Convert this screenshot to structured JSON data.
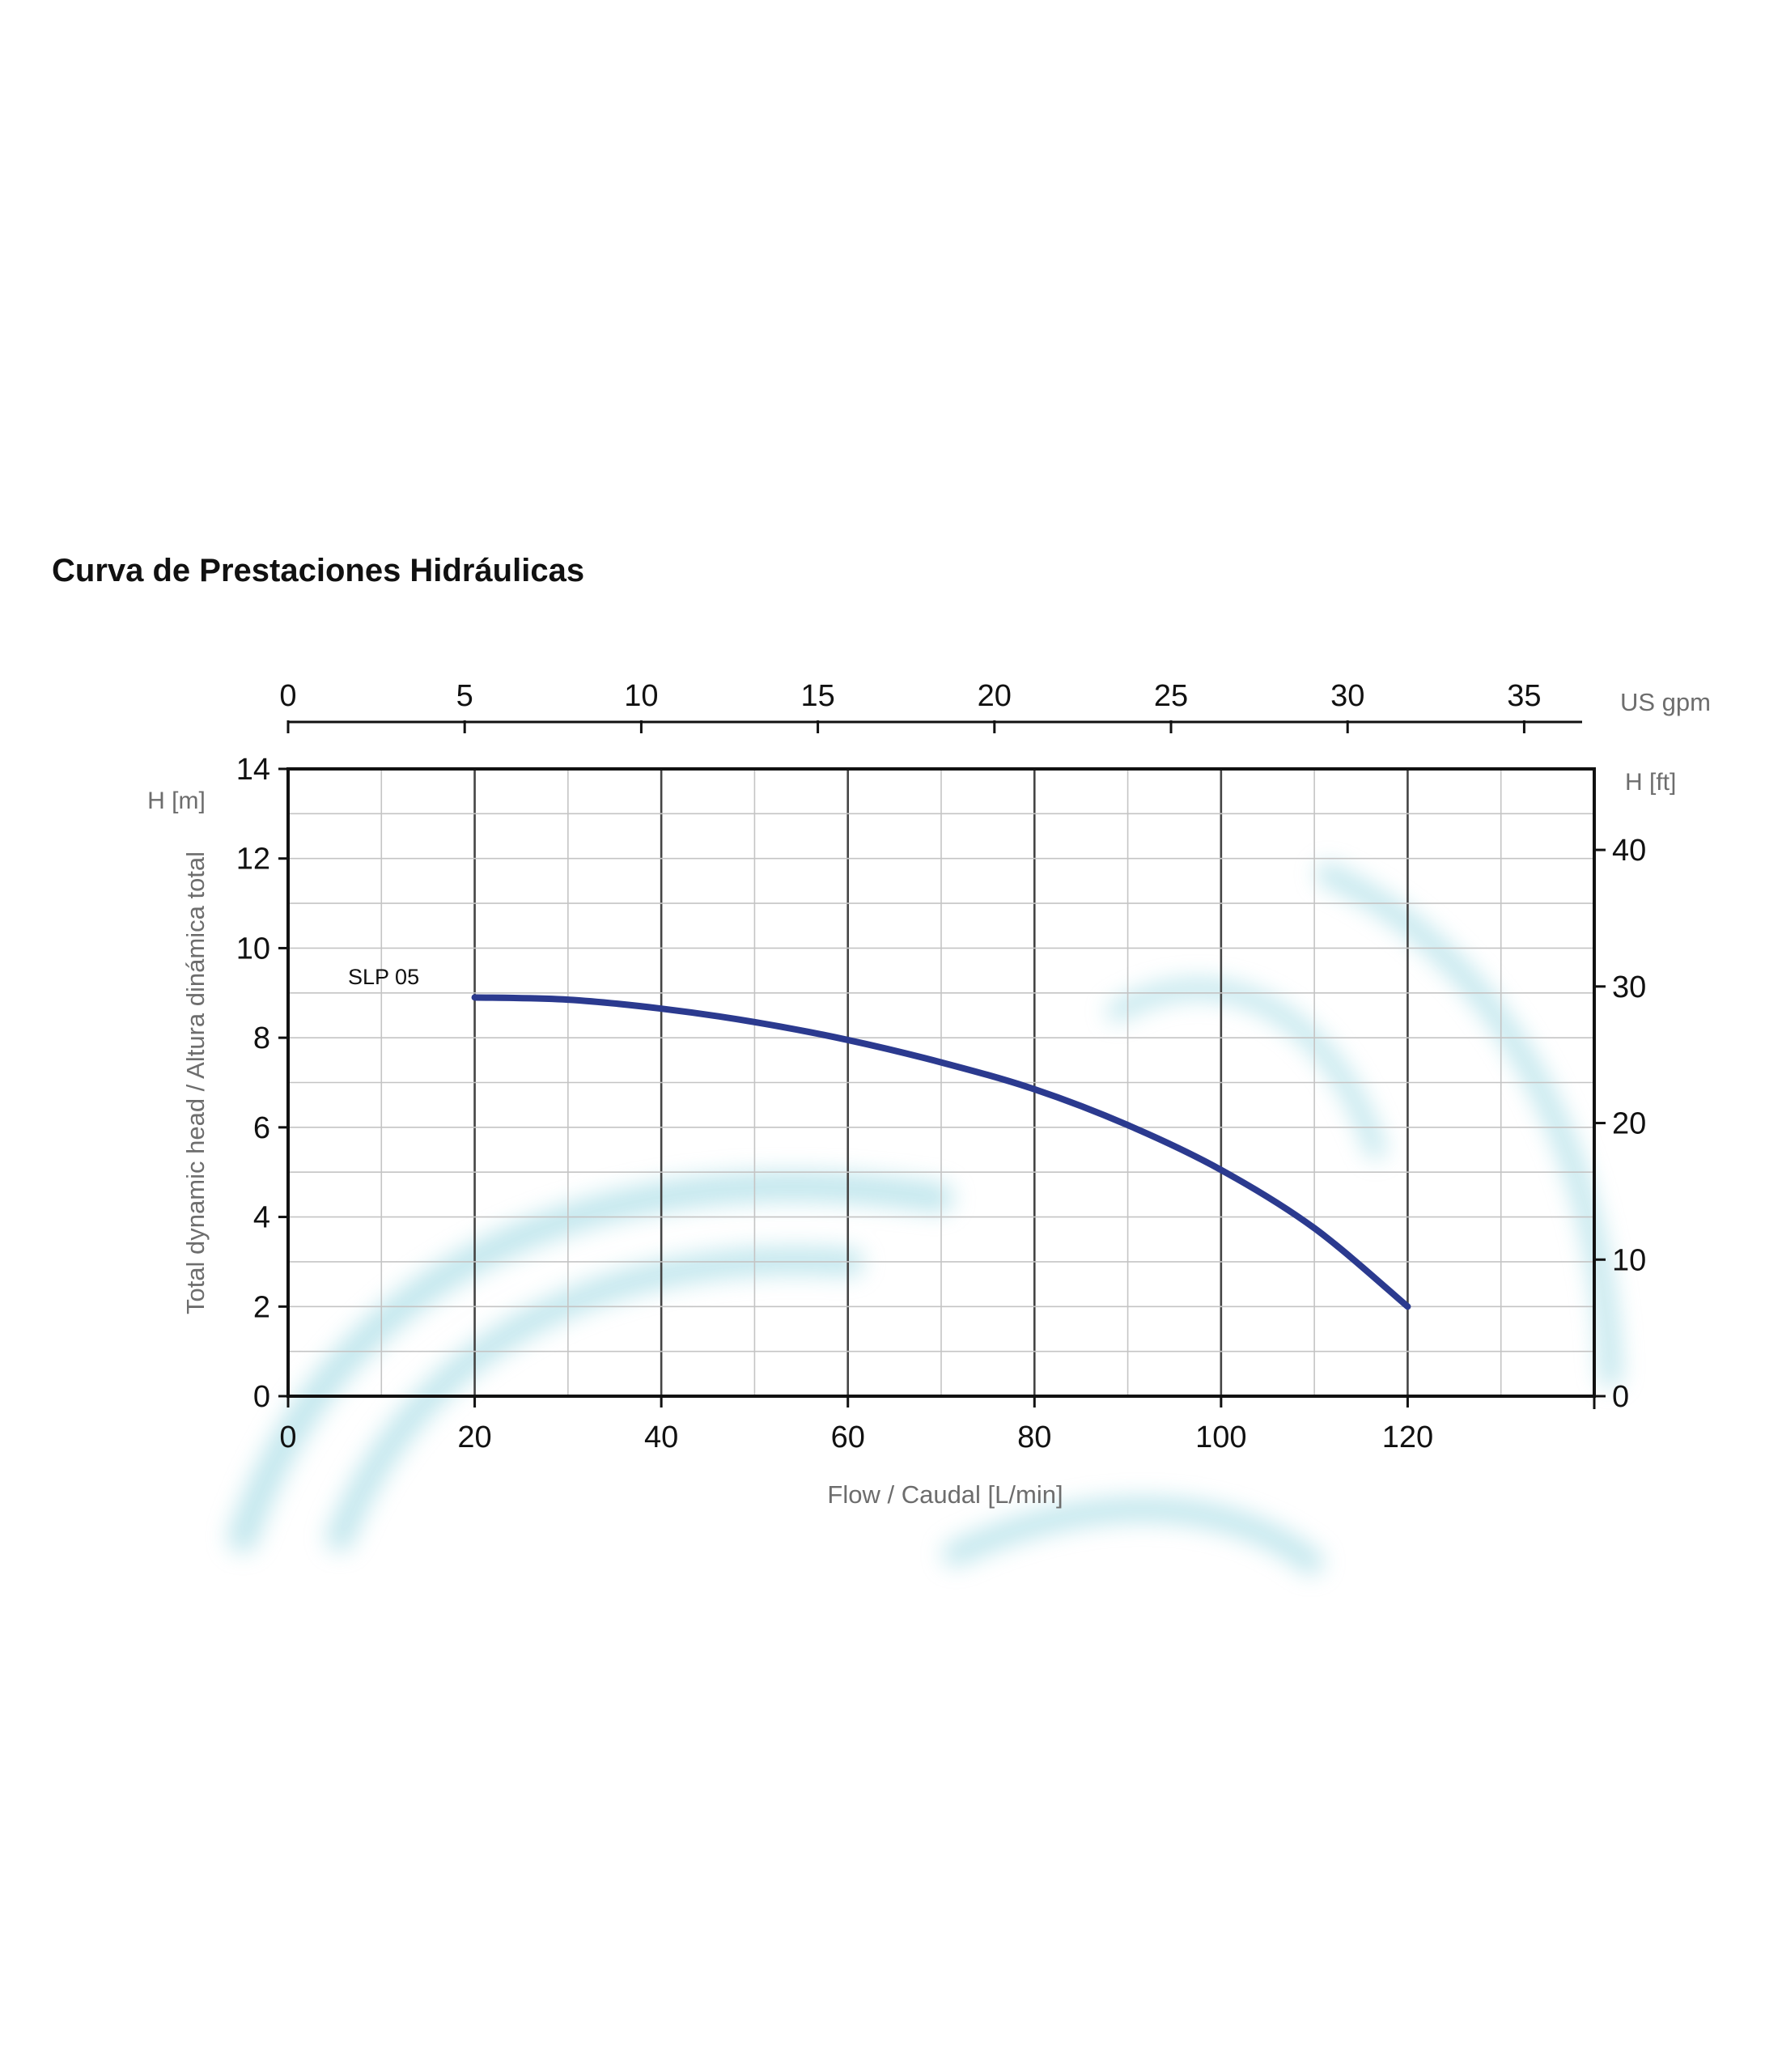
{
  "page": {
    "heading": "Curva de Prestaciones Hidráulicas"
  },
  "colors": {
    "curve": "#2b3a8f",
    "frame": "#111111",
    "grid_major": "#444444",
    "grid_minor": "#c4c4c4",
    "label_gray": "#6d6d6d",
    "watermark": "#8fd3df"
  },
  "chart_data": {
    "type": "line",
    "title": "",
    "xlabel": "Flow / Caudal [L/min]",
    "ylabel": "Total dynamic head / Altura dinámica total",
    "y_unit_label": "H [m]",
    "xlim": [
      0,
      140
    ],
    "ylim": [
      0,
      14
    ],
    "x_ticks": [
      0,
      20,
      40,
      60,
      80,
      100,
      120
    ],
    "y_ticks": [
      0,
      2,
      4,
      6,
      8,
      10,
      12,
      14
    ],
    "x_minor_step": 10,
    "y_minor_step": 1,
    "secondary_x": {
      "label": "US gpm",
      "ticks": [
        0,
        5,
        10,
        15,
        20,
        25,
        30,
        35
      ],
      "factor_from_lmin": 0.264172
    },
    "secondary_y": {
      "label": "H [ft]",
      "ticks": [
        0,
        10,
        20,
        30,
        40
      ],
      "factor_from_m": 3.28084
    },
    "grid": true,
    "series": [
      {
        "name": "SLP 05",
        "x": [
          20,
          30,
          40,
          50,
          60,
          70,
          80,
          90,
          100,
          110,
          120
        ],
        "y": [
          8.9,
          8.85,
          8.65,
          8.35,
          7.95,
          7.45,
          6.85,
          6.05,
          5.05,
          3.75,
          2.0
        ]
      }
    ]
  }
}
